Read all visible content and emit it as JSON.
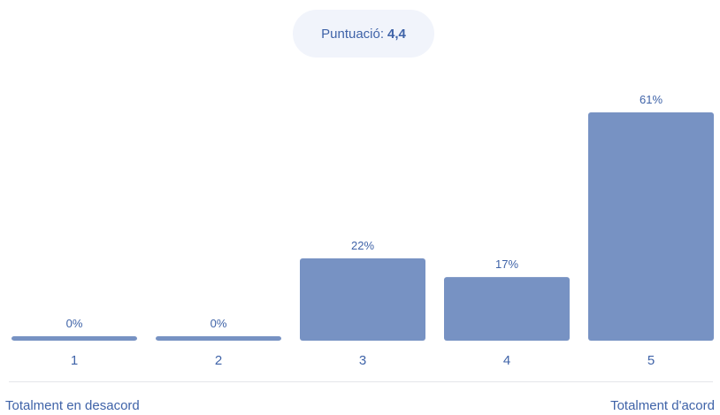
{
  "score": {
    "label": "Puntuació:",
    "value": "4,4"
  },
  "scale": {
    "min_label": "Totalment en desacord",
    "max_label": "Totalment d'acord"
  },
  "colors": {
    "bar": "#7792c3",
    "text": "#3f63a8",
    "pill_background": "#f1f4fb"
  },
  "chart_data": {
    "type": "bar",
    "categories": [
      "1",
      "2",
      "3",
      "4",
      "5"
    ],
    "values": [
      0,
      0,
      22,
      17,
      61
    ],
    "data_labels": [
      "0%",
      "0%",
      "22%",
      "17%",
      "61%"
    ],
    "unit": "%",
    "ylim": [
      0,
      61
    ],
    "grid": false,
    "legend": "none"
  }
}
